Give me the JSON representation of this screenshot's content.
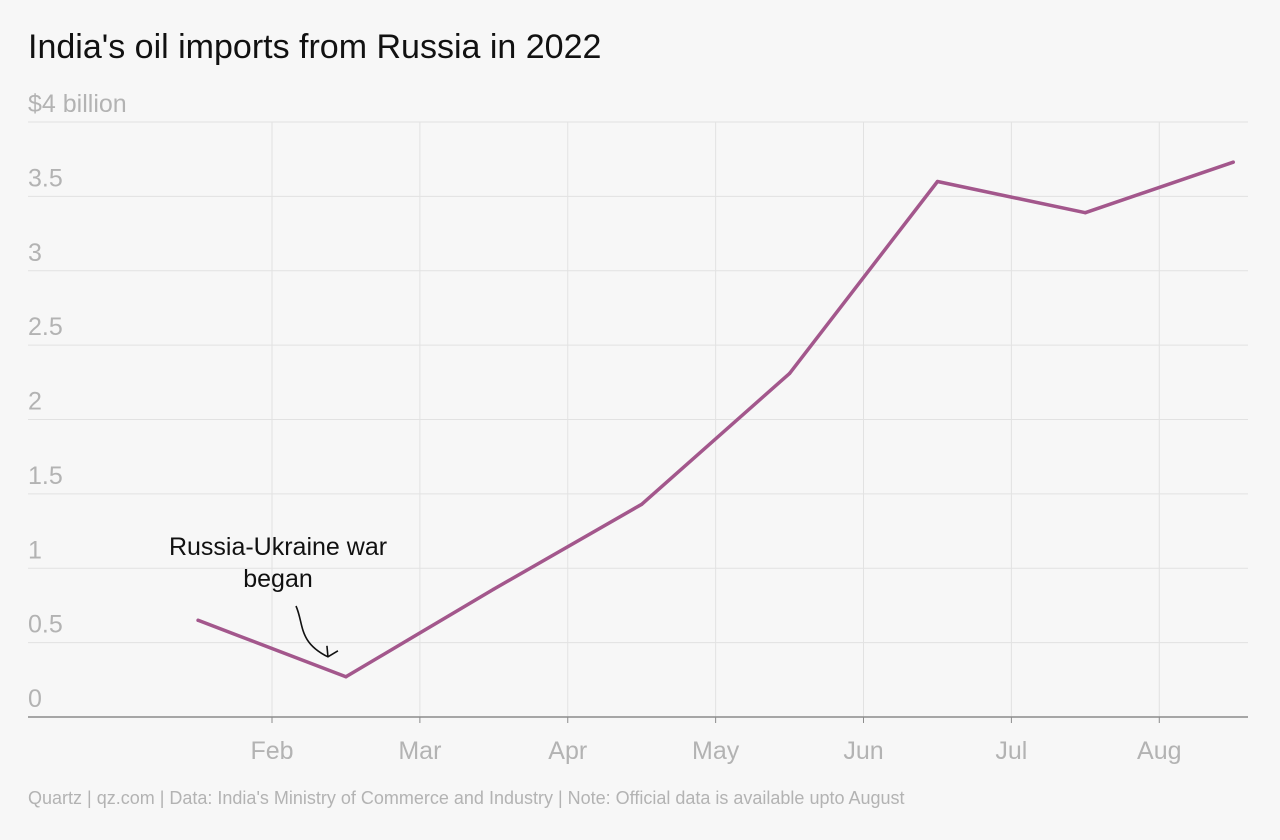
{
  "title": "India's oil imports from Russia in 2022",
  "footer": "Quartz | qz.com | Data: India's Ministry of Commerce and Industry | Note: Official data is available upto August",
  "annotation": {
    "line1": "Russia-Ukraine war",
    "line2": "began"
  },
  "colors": {
    "line": "#a3578c",
    "grid": "#e2e2e2",
    "axis": "#8c8c8c",
    "tick_text": "#b3b3b3",
    "title": "#111111"
  },
  "chart_data": {
    "type": "line",
    "title": "India's oil imports from Russia in 2022",
    "y_tick_labels": [
      "0",
      "0.5",
      "1",
      "1.5",
      "2",
      "2.5",
      "3",
      "3.5",
      "$4 billion"
    ],
    "y_ticks": [
      0,
      0.5,
      1,
      1.5,
      2,
      2.5,
      3,
      3.5,
      4
    ],
    "ylim": [
      0,
      4
    ],
    "x_tick_labels": [
      "Feb",
      "Mar",
      "Apr",
      "May",
      "Jun",
      "Jul",
      "Aug"
    ],
    "x_ticks": [
      2,
      3,
      4,
      5,
      6,
      7,
      8
    ],
    "xlim": [
      0.35,
      8.6
    ],
    "grid": true,
    "series": [
      {
        "x": [
          1.5,
          2.5,
          3.5,
          4.5,
          5.5,
          6.5,
          7.5,
          8.5
        ],
        "values": [
          0.65,
          0.27,
          0.86,
          1.43,
          2.31,
          3.6,
          3.39,
          3.73
        ]
      }
    ]
  }
}
